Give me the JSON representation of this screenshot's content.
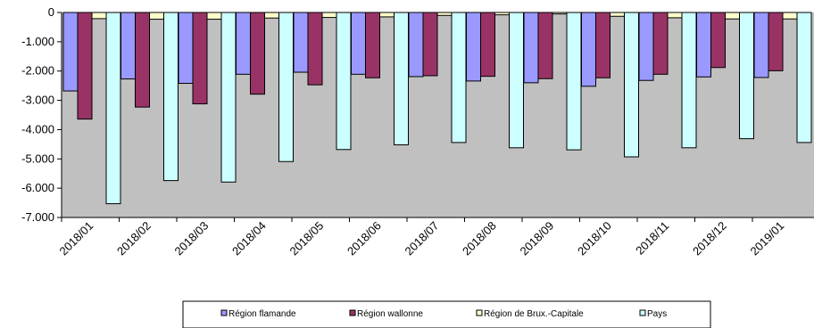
{
  "chart_data": {
    "type": "bar",
    "categories": [
      "2018/01",
      "2018/02",
      "2018/03",
      "2018/04",
      "2018/05",
      "2018/06",
      "2018/07",
      "2018/08",
      "2018/09",
      "2018/10",
      "2018/11",
      "2018/12",
      "2019/01"
    ],
    "series": [
      {
        "name": "Région flamande",
        "color": "#9999ff",
        "values": [
          -2680,
          -2270,
          -2420,
          -2110,
          -2040,
          -2110,
          -2190,
          -2340,
          -2400,
          -2520,
          -2320,
          -2200,
          -2220
        ]
      },
      {
        "name": "Région wallonne",
        "color": "#993366",
        "values": [
          -3640,
          -3230,
          -3120,
          -2790,
          -2470,
          -2230,
          -2160,
          -2180,
          -2260,
          -2230,
          -2110,
          -1880,
          -1990
        ]
      },
      {
        "name": "Région de Brux.-Capitale",
        "color": "#ffffcc",
        "values": [
          -210,
          -230,
          -230,
          -190,
          -170,
          -150,
          -100,
          -80,
          -50,
          -130,
          -180,
          -220,
          -220
        ]
      },
      {
        "name": "Pays",
        "color": "#ccffff",
        "values": [
          -6530,
          -5740,
          -5790,
          -5090,
          -4680,
          -4520,
          -4440,
          -4620,
          -4690,
          -4930,
          -4620,
          -4310,
          -4440
        ]
      }
    ],
    "ylim": [
      -7000,
      0
    ],
    "yticks": [
      "0",
      "-1.000",
      "-2.000",
      "-3.000",
      "-4.000",
      "-5.000",
      "-6.000",
      "-7.000"
    ],
    "ytick_values": [
      0,
      -1000,
      -2000,
      -3000,
      -4000,
      -5000,
      -6000,
      -7000
    ],
    "plot_background": "#c0c0c0",
    "grid": false,
    "legend_position": "bottom"
  }
}
